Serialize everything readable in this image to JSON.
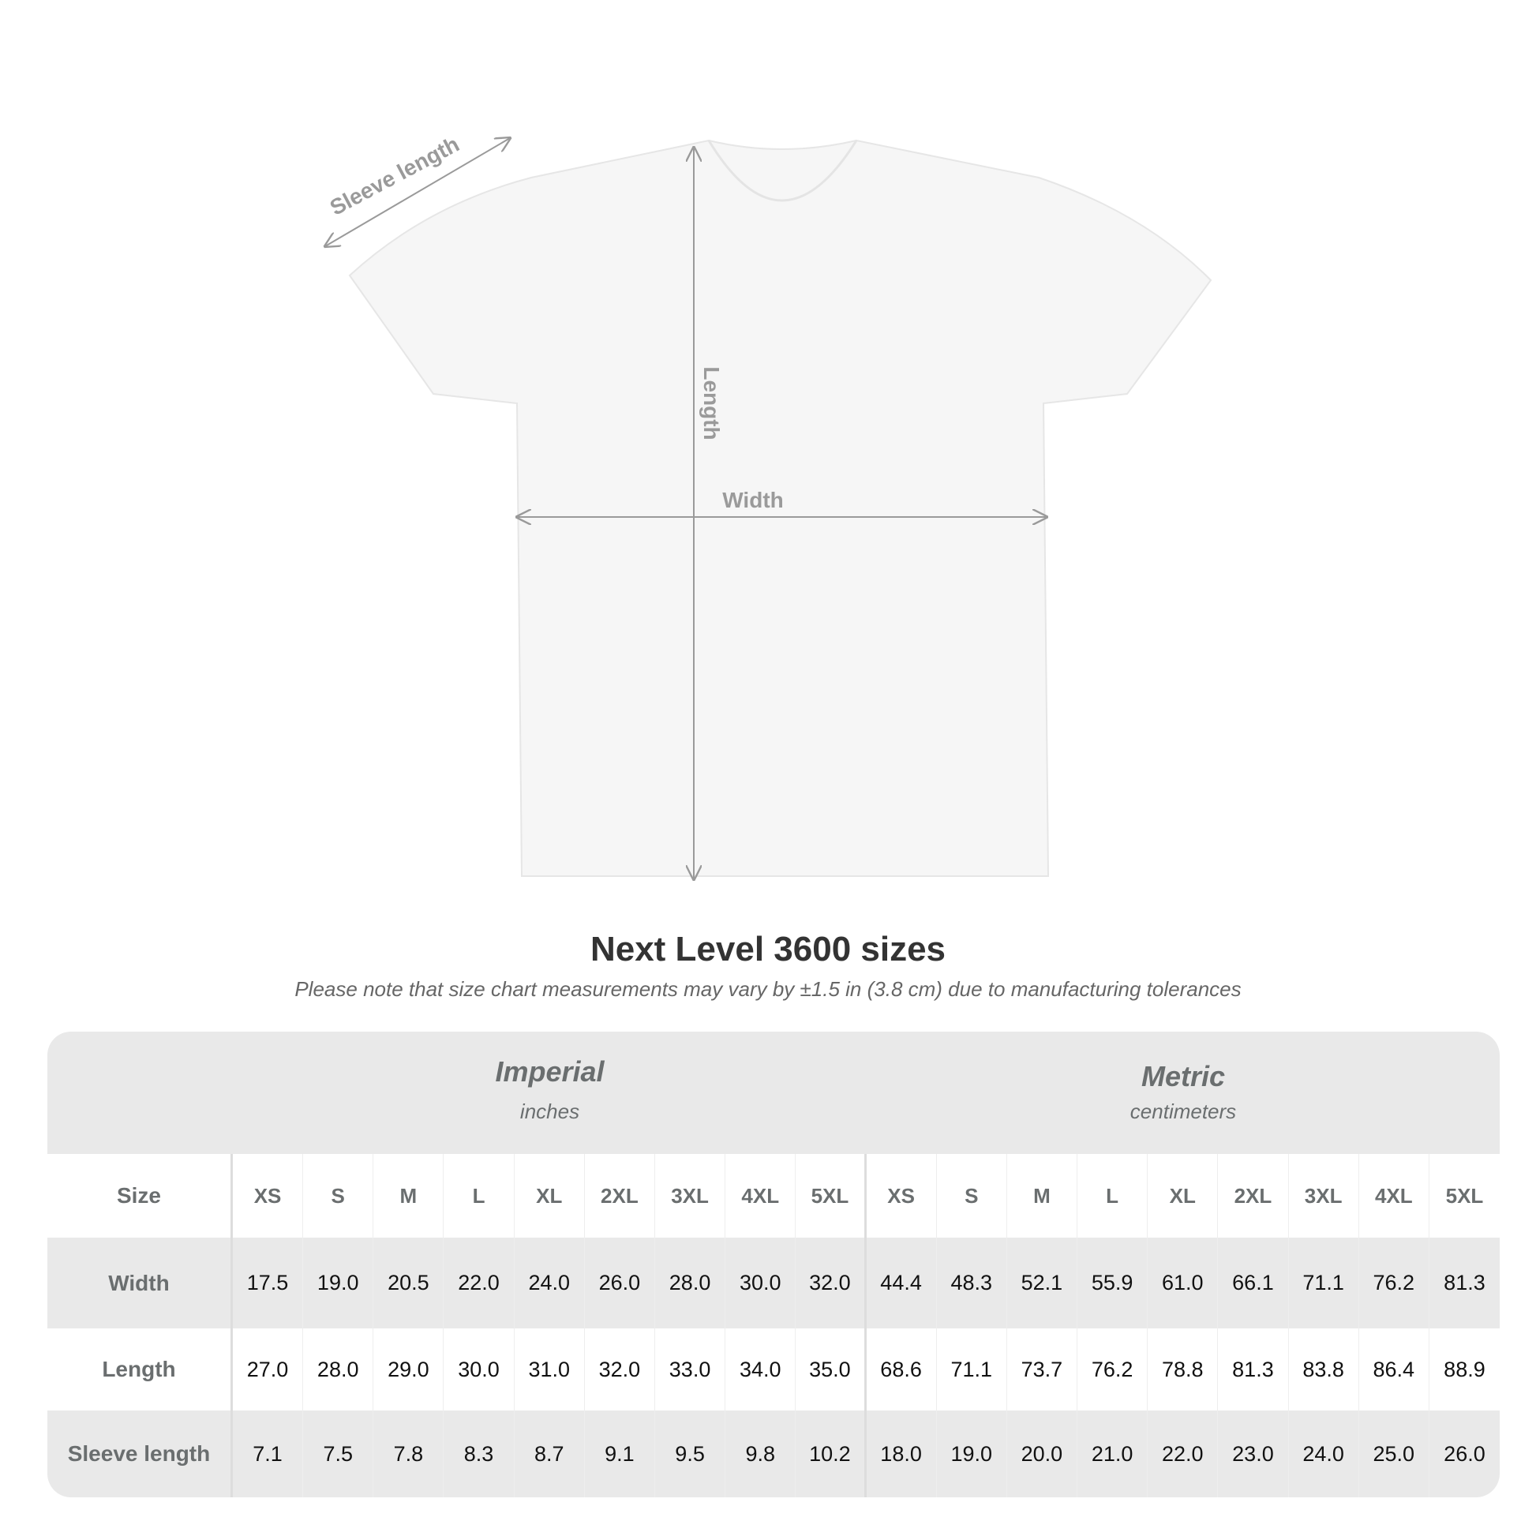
{
  "diagram": {
    "labels": {
      "sleeve": "Sleeve length",
      "length": "Length",
      "width": "Width"
    },
    "colors": {
      "shirt": "#f6f6f6",
      "arrow": "#9a9a9a",
      "label": "#9a9a9a"
    }
  },
  "title": "Next Level 3600 sizes",
  "subtitle": "Please note that size chart measurements may vary by ±1.5 in (3.8 cm) due to manufacturing tolerances",
  "table": {
    "imperial": {
      "name": "Imperial",
      "unit": "inches"
    },
    "metric": {
      "name": "Metric",
      "unit": "centimeters"
    },
    "size_label": "Size",
    "sizes": [
      "XS",
      "S",
      "M",
      "L",
      "XL",
      "2XL",
      "3XL",
      "4XL",
      "5XL"
    ],
    "rows": [
      {
        "label": "Width",
        "imperial": [
          "17.5",
          "19.0",
          "20.5",
          "22.0",
          "24.0",
          "26.0",
          "28.0",
          "30.0",
          "32.0"
        ],
        "metric": [
          "44.4",
          "48.3",
          "52.1",
          "55.9",
          "61.0",
          "66.1",
          "71.1",
          "76.2",
          "81.3"
        ]
      },
      {
        "label": "Length",
        "imperial": [
          "27.0",
          "28.0",
          "29.0",
          "30.0",
          "31.0",
          "32.0",
          "33.0",
          "34.0",
          "35.0"
        ],
        "metric": [
          "68.6",
          "71.1",
          "73.7",
          "76.2",
          "78.8",
          "81.3",
          "83.8",
          "86.4",
          "88.9"
        ]
      },
      {
        "label": "Sleeve length",
        "imperial": [
          "7.1",
          "7.5",
          "7.8",
          "8.3",
          "8.7",
          "9.1",
          "9.5",
          "9.8",
          "10.2"
        ],
        "metric": [
          "18.0",
          "19.0",
          "20.0",
          "21.0",
          "22.0",
          "23.0",
          "24.0",
          "25.0",
          "26.0"
        ]
      }
    ]
  }
}
